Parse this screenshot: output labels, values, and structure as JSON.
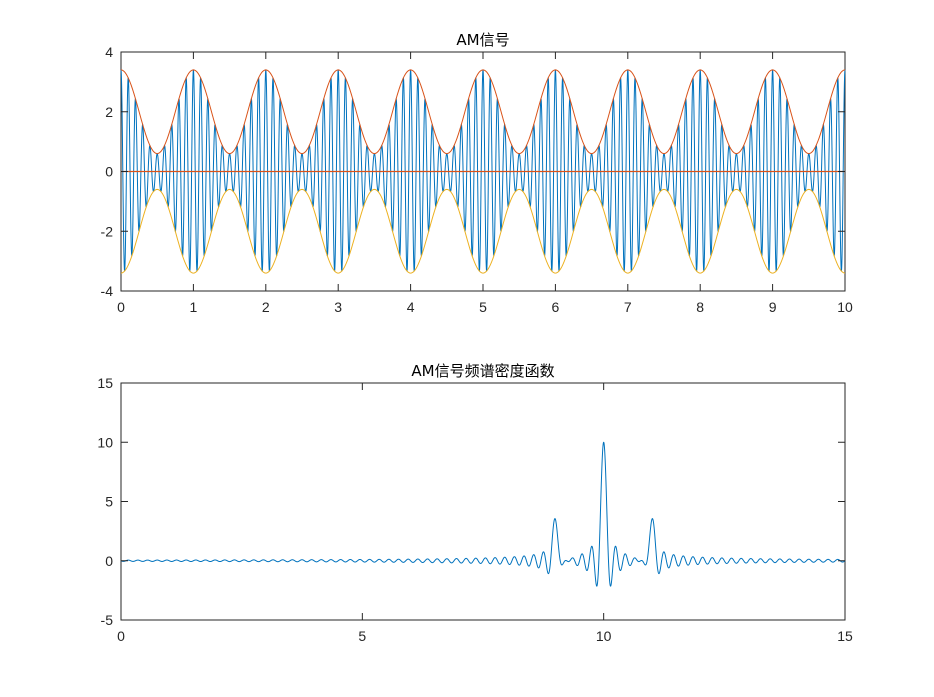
{
  "chart_data": [
    {
      "type": "line",
      "title": "AM信号",
      "xlabel": "",
      "ylabel": "",
      "xlim": [
        0,
        10
      ],
      "ylim": [
        -4,
        4
      ],
      "xticks": [
        0,
        1,
        2,
        3,
        4,
        5,
        6,
        7,
        8,
        9,
        10
      ],
      "yticks": [
        -4,
        -2,
        0,
        2,
        4
      ],
      "grid": false,
      "series": [
        {
          "name": "AM signal",
          "color": "#0072BD",
          "formula": "(2 + 1.4*cos(2*pi*t)) * cos(20*pi*t)",
          "carrier_hz": 10,
          "modulation_hz": 1,
          "dc_level": 2,
          "modulation_amplitude": 1.4
        },
        {
          "name": "upper envelope",
          "color": "#D95319",
          "envelope_max": 3.4,
          "envelope_min": 0.6
        },
        {
          "name": "lower envelope",
          "color": "#EDB120",
          "envelope_max": -0.6,
          "envelope_min": -3.4
        },
        {
          "name": "zero line",
          "color": "#D95319",
          "values": [
            0,
            0
          ]
        }
      ]
    },
    {
      "type": "line",
      "title": "AM信号频谱密度函数",
      "xlabel": "",
      "ylabel": "",
      "xlim": [
        0,
        15
      ],
      "ylim": [
        -5,
        15
      ],
      "xticks": [
        0,
        5,
        10,
        15
      ],
      "yticks": [
        -5,
        0,
        5,
        10,
        15
      ],
      "grid": false,
      "series": [
        {
          "name": "spectral density",
          "color": "#0072BD",
          "peaks": [
            {
              "center": 9,
              "height": 3.5
            },
            {
              "center": 10,
              "height": 10
            },
            {
              "center": 11,
              "height": 3.5
            }
          ],
          "sinc_zero_spacing": 0.1
        }
      ]
    }
  ]
}
